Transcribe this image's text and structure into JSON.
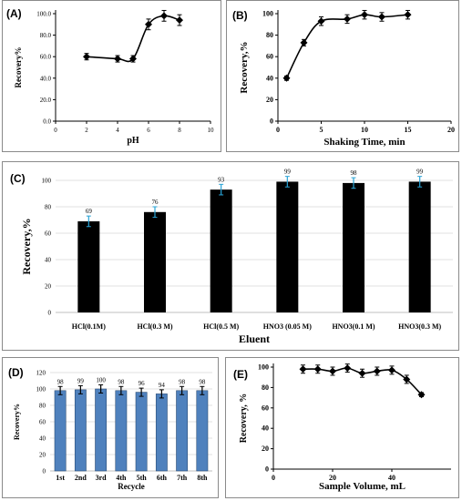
{
  "chart_data": [
    {
      "id": "A",
      "panel_label": "(A)",
      "type": "line",
      "xlabel": "pH",
      "ylabel": "Recovery%",
      "xlim": [
        0,
        10
      ],
      "ylim": [
        0,
        100
      ],
      "x_ticks": [
        "0",
        "2",
        "4",
        "6",
        "8",
        "10"
      ],
      "y_ticks": [
        "0.0",
        "20.0",
        "40.0",
        "60.0",
        "80.0",
        "100.0"
      ],
      "x": [
        2,
        4,
        5,
        6,
        7,
        8
      ],
      "values": [
        60,
        58,
        58,
        90,
        98,
        94
      ],
      "errors": [
        3,
        3,
        3,
        5,
        5,
        5
      ]
    },
    {
      "id": "B",
      "panel_label": "(B)",
      "type": "line",
      "xlabel": "Shaking Time, min",
      "ylabel": "Recovery,%",
      "xlim": [
        0,
        20
      ],
      "ylim": [
        0,
        100
      ],
      "x_ticks": [
        "0",
        "5",
        "10",
        "15",
        "20"
      ],
      "y_ticks": [
        "0",
        "20",
        "40",
        "60",
        "80",
        "100"
      ],
      "x": [
        1,
        3,
        5,
        8,
        10,
        12,
        15
      ],
      "values": [
        40,
        73,
        93,
        95,
        99,
        97,
        99
      ],
      "errors": [
        2,
        3,
        4,
        4,
        4,
        4,
        4
      ]
    },
    {
      "id": "C",
      "panel_label": "(C)",
      "type": "bar",
      "xlabel": "Eluent",
      "ylabel": "Recovery,%",
      "ylim": [
        0,
        100
      ],
      "y_ticks": [
        "0",
        "20",
        "40",
        "60",
        "80",
        "100"
      ],
      "categories": [
        "HCl(0.1M)",
        "HCl(0.3 M)",
        "HCl(0.5 M)",
        "HNO3 (0.05 M)",
        "HNO3(0.1 M)",
        "HNO3(0.3 M)"
      ],
      "values": [
        69,
        76,
        93,
        99,
        98,
        99
      ],
      "data_labels": [
        "69",
        "76",
        "93",
        "99",
        "98",
        "99"
      ],
      "bar_color": "#000000",
      "error_color": "#29a3d6"
    },
    {
      "id": "D",
      "panel_label": "(D)",
      "type": "bar",
      "xlabel": "Recycle",
      "ylabel": "Recovery%",
      "ylim": [
        0,
        120
      ],
      "y_ticks": [
        "0",
        "20",
        "40",
        "60",
        "80",
        "100",
        "120"
      ],
      "categories": [
        "1st",
        "2nd",
        "3rd",
        "4th",
        "5th",
        "6th",
        "7th",
        "8th"
      ],
      "values": [
        98,
        99,
        100,
        98,
        96,
        94,
        98,
        98
      ],
      "data_labels": [
        "98",
        "99",
        "100",
        "98",
        "96",
        "94",
        "98",
        "98"
      ],
      "bar_color": "#4f81bd",
      "error_color": "#000000"
    },
    {
      "id": "E",
      "panel_label": "(E)",
      "type": "line",
      "xlabel": "Sample Volume, mL",
      "ylabel": "Recovery, %",
      "xlim": [
        0,
        60
      ],
      "ylim": [
        0,
        100
      ],
      "x_ticks": [
        "0",
        "20",
        "40"
      ],
      "y_ticks": [
        "0",
        "20",
        "40",
        "60",
        "80",
        "100"
      ],
      "x": [
        10,
        15,
        20,
        25,
        30,
        35,
        40,
        45,
        50
      ],
      "values": [
        98,
        98,
        96,
        99,
        94,
        96,
        97,
        88,
        73
      ],
      "errors": [
        4,
        4,
        4,
        4,
        4,
        4,
        4,
        4,
        2
      ]
    }
  ]
}
